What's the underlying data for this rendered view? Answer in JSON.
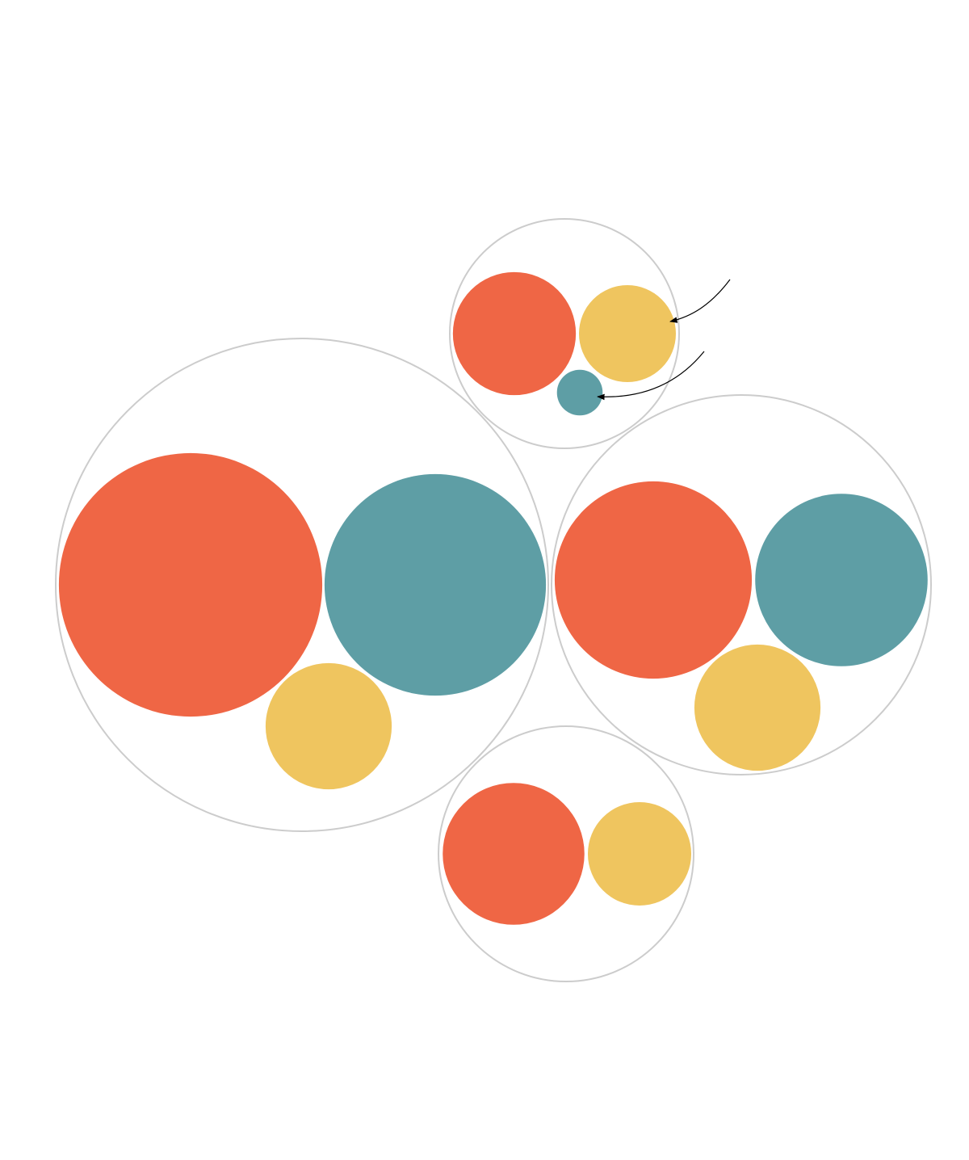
{
  "chart_data": {
    "type": "packed-bubble",
    "categories": [
      null,
      null,
      null,
      null
    ],
    "series": [
      {
        "color": "#ef6645",
        "values": [
          266,
          58,
          149,
          77
        ]
      },
      {
        "color": "#5e9ea5",
        "values": [
          188,
          8,
          114,
          null
        ]
      },
      {
        "color": "#efc55f",
        "values": [
          61,
          36,
          61,
          41
        ]
      }
    ]
  }
}
